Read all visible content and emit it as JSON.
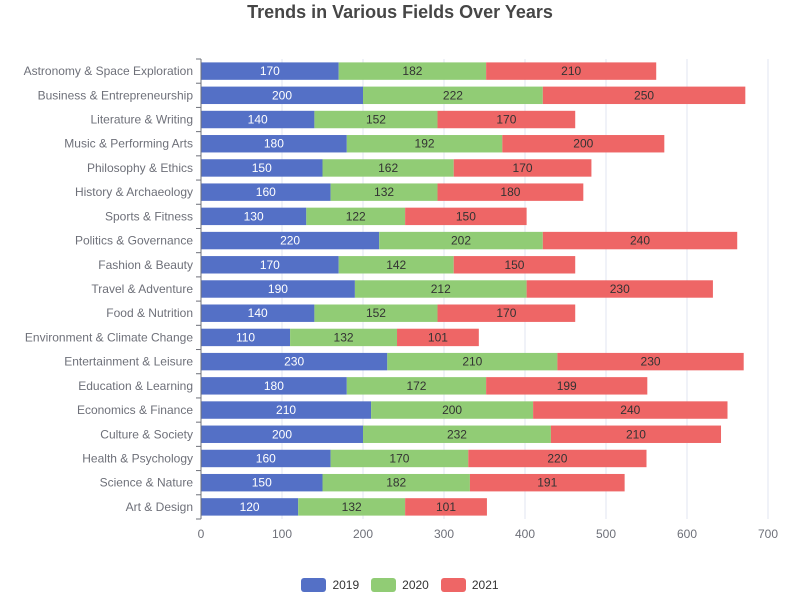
{
  "chart_data": {
    "type": "bar",
    "orientation": "horizontal",
    "stacked": true,
    "title": "Trends in Various Fields Over Years",
    "categories": [
      "Astronomy & Space Exploration",
      "Business & Entrepreneurship",
      "Literature & Writing",
      "Music & Performing Arts",
      "Philosophy & Ethics",
      "History & Archaeology",
      "Sports & Fitness",
      "Politics & Governance",
      "Fashion & Beauty",
      "Travel & Adventure",
      "Food & Nutrition",
      "Environment & Climate Change",
      "Entertainment & Leisure",
      "Education & Learning",
      "Economics & Finance",
      "Culture & Society",
      "Health & Psychology",
      "Science & Nature",
      "Art & Design"
    ],
    "series": [
      {
        "name": "2019",
        "color": "#5470c6",
        "label_color": "#ffffff",
        "values": [
          170,
          200,
          140,
          180,
          150,
          160,
          130,
          220,
          170,
          190,
          140,
          110,
          230,
          180,
          210,
          200,
          160,
          150,
          120
        ]
      },
      {
        "name": "2020",
        "color": "#91cc75",
        "label_color": "#333333",
        "values": [
          182,
          222,
          152,
          192,
          162,
          132,
          122,
          202,
          142,
          212,
          152,
          132,
          210,
          172,
          200,
          232,
          170,
          182,
          132
        ]
      },
      {
        "name": "2021",
        "color": "#ee6666",
        "label_color": "#333333",
        "values": [
          210,
          250,
          170,
          200,
          170,
          180,
          150,
          240,
          150,
          230,
          170,
          101,
          230,
          199,
          240,
          210,
          220,
          191,
          101
        ]
      }
    ],
    "xlim": [
      0,
      700
    ],
    "xticks": [
      0,
      100,
      200,
      300,
      400,
      500,
      600,
      700
    ],
    "grid": true,
    "legend_position": "bottom-center"
  }
}
